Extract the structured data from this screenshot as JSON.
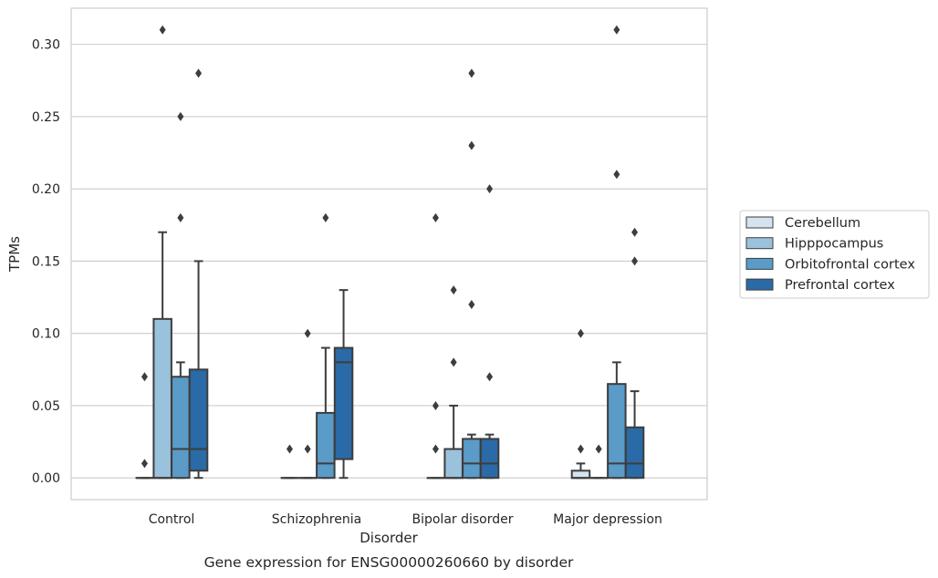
{
  "chart_data": {
    "type": "box",
    "title": "",
    "caption": "Gene expression for ENSG00000260660 by disorder",
    "xlabel": "Disorder",
    "ylabel": "TPMs",
    "ylim": [
      -0.015,
      0.325
    ],
    "yticks": [
      "0.00",
      "0.05",
      "0.10",
      "0.15",
      "0.20",
      "0.25",
      "0.30"
    ],
    "grid": "horizontal",
    "legend_position": "right",
    "categories": [
      "Control",
      "Schizophrenia",
      "Bipolar disorder",
      "Major depression"
    ],
    "series": [
      {
        "name": "Cerebellum",
        "color": "#d5e3f0",
        "boxes": [
          {
            "whisker_low": 0,
            "q1": 0,
            "median": 0,
            "q3": 0,
            "whisker_high": 0,
            "outliers": [
              0.01,
              0.07
            ]
          },
          {
            "whisker_low": 0,
            "q1": 0,
            "median": 0,
            "q3": 0,
            "whisker_high": 0,
            "outliers": [
              0.02
            ]
          },
          {
            "whisker_low": 0,
            "q1": 0,
            "median": 0,
            "q3": 0,
            "whisker_high": 0,
            "outliers": [
              0.02,
              0.05,
              0.18
            ]
          },
          {
            "whisker_low": 0,
            "q1": 0,
            "median": 0,
            "q3": 0.005,
            "whisker_high": 0.01,
            "outliers": [
              0.02,
              0.1
            ]
          }
        ]
      },
      {
        "name": "Hipppocampus",
        "color": "#9bc2dc",
        "boxes": [
          {
            "whisker_low": 0,
            "q1": 0,
            "median": 0,
            "q3": 0.11,
            "whisker_high": 0.17,
            "outliers": [
              0.31
            ]
          },
          {
            "whisker_low": 0,
            "q1": 0,
            "median": 0,
            "q3": 0,
            "whisker_high": 0,
            "outliers": [
              0.02,
              0.1
            ]
          },
          {
            "whisker_low": 0,
            "q1": 0,
            "median": 0,
            "q3": 0.02,
            "whisker_high": 0.05,
            "outliers": [
              0.08,
              0.13
            ]
          },
          {
            "whisker_low": 0,
            "q1": 0,
            "median": 0,
            "q3": 0,
            "whisker_high": 0,
            "outliers": [
              0.02
            ]
          }
        ]
      },
      {
        "name": "Orbitofrontal cortex",
        "color": "#5a9bc8",
        "boxes": [
          {
            "whisker_low": 0,
            "q1": 0,
            "median": 0.02,
            "q3": 0.07,
            "whisker_high": 0.08,
            "outliers": [
              0.18,
              0.25
            ]
          },
          {
            "whisker_low": 0,
            "q1": 0,
            "median": 0.01,
            "q3": 0.045,
            "whisker_high": 0.09,
            "outliers": [
              0.18
            ]
          },
          {
            "whisker_low": 0,
            "q1": 0,
            "median": 0.01,
            "q3": 0.027,
            "whisker_high": 0.03,
            "outliers": [
              0.12,
              0.23,
              0.28
            ]
          },
          {
            "whisker_low": 0,
            "q1": 0,
            "median": 0.01,
            "q3": 0.065,
            "whisker_high": 0.08,
            "outliers": [
              0.21,
              0.31
            ]
          }
        ]
      },
      {
        "name": "Prefrontal cortex",
        "color": "#2a6aa6",
        "boxes": [
          {
            "whisker_low": 0,
            "q1": 0.005,
            "median": 0.02,
            "q3": 0.075,
            "whisker_high": 0.15,
            "outliers": [
              0.28
            ]
          },
          {
            "whisker_low": 0,
            "q1": 0.013,
            "median": 0.08,
            "q3": 0.09,
            "whisker_high": 0.13,
            "outliers": []
          },
          {
            "whisker_low": 0,
            "q1": 0,
            "median": 0.01,
            "q3": 0.027,
            "whisker_high": 0.03,
            "outliers": [
              0.07,
              0.2
            ]
          },
          {
            "whisker_low": 0,
            "q1": 0,
            "median": 0.01,
            "q3": 0.035,
            "whisker_high": 0.06,
            "outliers": [
              0.15,
              0.17
            ]
          }
        ]
      }
    ]
  }
}
